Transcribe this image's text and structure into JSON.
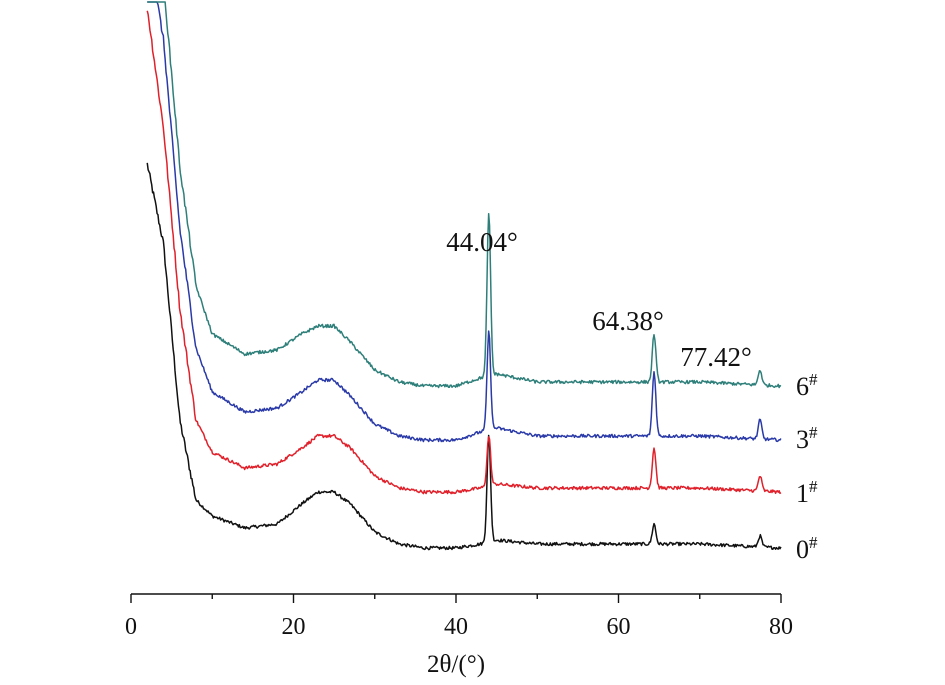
{
  "chart_data": {
    "type": "line",
    "title": "",
    "xlabel": "2θ/(°)",
    "ylabel": "",
    "xlim": [
      0,
      80
    ],
    "xticks": [
      0,
      20,
      40,
      60,
      80
    ],
    "minor_xticks": [
      10,
      30,
      50,
      70
    ],
    "yaxis_visible": false,
    "grid": false,
    "legend": "none",
    "peak_labels": [
      {
        "text": "44.04°",
        "x": 44.04
      },
      {
        "text": "64.38°",
        "x": 64.38
      },
      {
        "text": "77.42°",
        "x": 77.42
      }
    ],
    "series": [
      {
        "name": "0#",
        "label_main": "0",
        "label_sup": "#",
        "color": "#111111",
        "offset": 0,
        "points": [
          [
            2,
            0.98
          ],
          [
            4,
            0.78
          ],
          [
            6,
            0.34
          ],
          [
            8,
            0.14
          ],
          [
            10,
            0.1
          ],
          [
            14,
            0.07
          ],
          [
            18,
            0.08
          ],
          [
            21,
            0.13
          ],
          [
            23,
            0.16
          ],
          [
            25,
            0.16
          ],
          [
            27,
            0.13
          ],
          [
            30,
            0.06
          ],
          [
            33,
            0.03
          ],
          [
            36,
            0.02
          ],
          [
            40,
            0.02
          ],
          [
            43,
            0.03
          ],
          [
            44.04,
            0.3
          ],
          [
            45,
            0.04
          ],
          [
            50,
            0.03
          ],
          [
            60,
            0.03
          ],
          [
            64.38,
            0.08
          ],
          [
            70,
            0.03
          ],
          [
            77.42,
            0.05
          ],
          [
            80,
            0.02
          ]
        ]
      },
      {
        "name": "1#",
        "label_main": "1",
        "label_sup": "#",
        "color": "#e0202a",
        "offset": 1,
        "points": [
          [
            2,
            1.25
          ],
          [
            4,
            0.95
          ],
          [
            6,
            0.5
          ],
          [
            8,
            0.22
          ],
          [
            10,
            0.14
          ],
          [
            14,
            0.1
          ],
          [
            18,
            0.11
          ],
          [
            21,
            0.15
          ],
          [
            23,
            0.18
          ],
          [
            25,
            0.18
          ],
          [
            27,
            0.15
          ],
          [
            30,
            0.08
          ],
          [
            33,
            0.05
          ],
          [
            36,
            0.04
          ],
          [
            40,
            0.04
          ],
          [
            43,
            0.05
          ],
          [
            44.04,
            0.18
          ],
          [
            45,
            0.06
          ],
          [
            50,
            0.05
          ],
          [
            60,
            0.05
          ],
          [
            64.38,
            0.15
          ],
          [
            70,
            0.05
          ],
          [
            77.42,
            0.08
          ],
          [
            80,
            0.04
          ]
        ]
      },
      {
        "name": "3#",
        "label_main": "3",
        "label_sup": "#",
        "color": "#2a3aa8",
        "offset": 2,
        "points": [
          [
            2,
            1.3
          ],
          [
            4,
            1.05
          ],
          [
            6,
            0.58
          ],
          [
            8,
            0.28
          ],
          [
            10,
            0.17
          ],
          [
            14,
            0.12
          ],
          [
            18,
            0.13
          ],
          [
            21,
            0.17
          ],
          [
            23,
            0.2
          ],
          [
            25,
            0.2
          ],
          [
            27,
            0.16
          ],
          [
            30,
            0.09
          ],
          [
            33,
            0.06
          ],
          [
            36,
            0.05
          ],
          [
            40,
            0.05
          ],
          [
            43,
            0.07
          ],
          [
            44.04,
            0.32
          ],
          [
            45,
            0.08
          ],
          [
            50,
            0.06
          ],
          [
            60,
            0.06
          ],
          [
            64.38,
            0.22
          ],
          [
            70,
            0.06
          ],
          [
            77.42,
            0.1
          ],
          [
            80,
            0.05
          ]
        ]
      },
      {
        "name": "6#",
        "label_main": "6",
        "label_sup": "#",
        "color": "#2e7f7a",
        "offset": 3,
        "points": [
          [
            2,
            1.3
          ],
          [
            4,
            1.08
          ],
          [
            6,
            0.62
          ],
          [
            8,
            0.32
          ],
          [
            10,
            0.2
          ],
          [
            14,
            0.15
          ],
          [
            18,
            0.16
          ],
          [
            21,
            0.2
          ],
          [
            23,
            0.22
          ],
          [
            25,
            0.22
          ],
          [
            27,
            0.18
          ],
          [
            30,
            0.11
          ],
          [
            33,
            0.08
          ],
          [
            36,
            0.07
          ],
          [
            40,
            0.07
          ],
          [
            43,
            0.09
          ],
          [
            44.04,
            0.5
          ],
          [
            45,
            0.1
          ],
          [
            50,
            0.08
          ],
          [
            60,
            0.08
          ],
          [
            64.38,
            0.2
          ],
          [
            70,
            0.08
          ],
          [
            77.42,
            0.11
          ],
          [
            80,
            0.07
          ]
        ]
      }
    ]
  }
}
